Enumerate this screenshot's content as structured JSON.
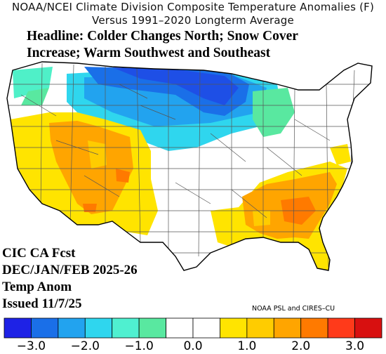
{
  "title_line1": "NOAA/NCEI Climate Division Composite Temperature Anomalies (F)",
  "title_line2": "Versus 1991–2020 Longterm Average",
  "headline_line1": "Headline: Colder Changes North; Snow Cover",
  "headline_line2": "Increase; Warm Southwest and Southeast",
  "forecast_lines": [
    "CIC CA Fcst",
    "DEC/JAN/FEB 2025-26",
    "Temp Anom",
    "Issued 11/7/25"
  ],
  "credit": "NOAA PSL and CIRES–CU",
  "colors": {
    "scale": [
      "#1e22e6",
      "#1a6fe8",
      "#22a3ef",
      "#2fd6ee",
      "#4ff0d0",
      "#59e8a0",
      "#ffffff",
      "#ffffff",
      "#ffe400",
      "#ffcc00",
      "#ffa500",
      "#ff7a00",
      "#ff3a1a",
      "#d81010"
    ]
  },
  "legend": {
    "bins": 14,
    "min": -3.5,
    "max": 3.5,
    "ticks": [
      "−3.0",
      "−2.0",
      "−1.0",
      "0.0",
      "1.0",
      "2.0",
      "3.0"
    ],
    "tick_values": [
      -3,
      -2,
      -1,
      0,
      1,
      2,
      3
    ]
  },
  "regions": [
    {
      "name": "upper-midwest",
      "anomaly": -2.8,
      "color": "#1a5fe0"
    },
    {
      "name": "north-plains",
      "anomaly": -2.0,
      "color": "#22a3ef"
    },
    {
      "name": "central-plains",
      "anomaly": -1.2,
      "color": "#2fd6ee"
    },
    {
      "name": "great-lakes",
      "anomaly": -0.8,
      "color": "#59e8a0"
    },
    {
      "name": "pacific-northwest",
      "anomaly": -0.8,
      "color": "#4ff0c8"
    },
    {
      "name": "southwest",
      "anomaly": 1.3,
      "color": "#ffcc00"
    },
    {
      "name": "four-corners",
      "anomaly": 1.7,
      "color": "#ffa500"
    },
    {
      "name": "southeast",
      "anomaly": 1.6,
      "color": "#ffa500"
    },
    {
      "name": "gulf-coast",
      "anomaly": 1.1,
      "color": "#ffe400"
    },
    {
      "name": "mid-atlantic",
      "anomaly": 0.9,
      "color": "#ffe400"
    }
  ]
}
